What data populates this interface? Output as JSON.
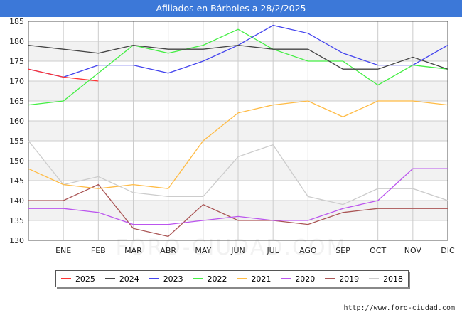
{
  "title": "Afiliados en Bárboles a 28/2/2025",
  "watermark": "FORO-CIUDAD.COM",
  "url": "http://www.foro-ciudad.com",
  "colors": {
    "title_bar": "#3c78d8",
    "band": "#f2f2f2",
    "grid": "#cccccc"
  },
  "chart_data": {
    "type": "line",
    "title": "Afiliados en Bárboles a 28/2/2025",
    "xlabel": "",
    "ylabel": "",
    "categories": [
      "",
      "ENE",
      "FEB",
      "MAR",
      "ABR",
      "MAY",
      "JUN",
      "JUL",
      "AGO",
      "SEP",
      "OCT",
      "NOV",
      "DIC"
    ],
    "ylim": [
      130,
      185
    ],
    "yticks": [
      130,
      135,
      140,
      145,
      150,
      155,
      160,
      165,
      170,
      175,
      180,
      185
    ],
    "grid": true,
    "legend_position": "bottom",
    "series": [
      {
        "name": "2025",
        "color": "#ff3333",
        "values": [
          173,
          171,
          170,
          null,
          null,
          null,
          null,
          null,
          null,
          null,
          null,
          null,
          null
        ]
      },
      {
        "name": "2024",
        "color": "#444444",
        "values": [
          179,
          178,
          177,
          179,
          178,
          178,
          179,
          178,
          178,
          173,
          173,
          176,
          173
        ]
      },
      {
        "name": "2023",
        "color": "#4444ee",
        "values": [
          173,
          171,
          174,
          174,
          172,
          175,
          179,
          184,
          182,
          177,
          174,
          174,
          179
        ]
      },
      {
        "name": "2022",
        "color": "#44ee44",
        "values": [
          164,
          165,
          172,
          179,
          177,
          179,
          183,
          178,
          175,
          175,
          169,
          174,
          173
        ]
      },
      {
        "name": "2021",
        "color": "#ffbb44",
        "values": [
          148,
          144,
          143,
          144,
          143,
          155,
          162,
          164,
          165,
          161,
          165,
          165,
          164
        ]
      },
      {
        "name": "2020",
        "color": "#bb55ee",
        "values": [
          138,
          138,
          137,
          134,
          134,
          135,
          136,
          135,
          135,
          138,
          140,
          148,
          148
        ]
      },
      {
        "name": "2019",
        "color": "#aa5555",
        "values": [
          140,
          140,
          144,
          133,
          131,
          139,
          135,
          135,
          134,
          137,
          138,
          138,
          138
        ]
      },
      {
        "name": "2018",
        "color": "#cccccc",
        "values": [
          155,
          144,
          146,
          142,
          141,
          141,
          151,
          154,
          141,
          139,
          143,
          143,
          140
        ]
      }
    ]
  }
}
